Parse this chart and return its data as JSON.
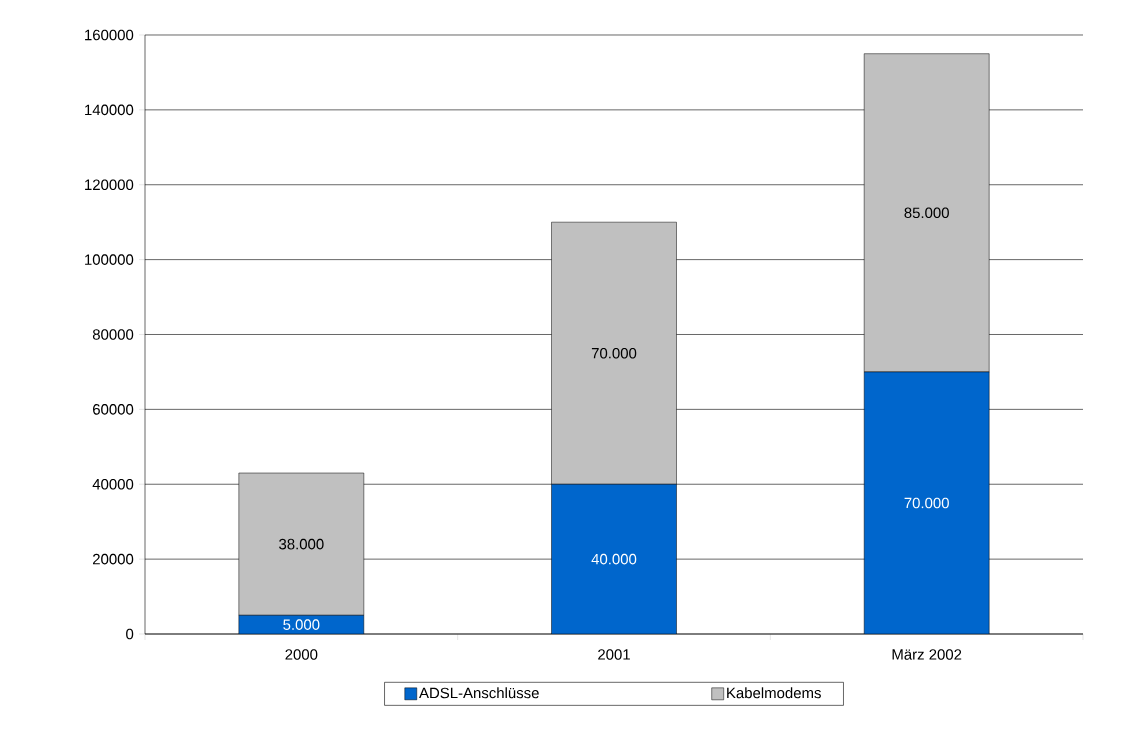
{
  "chart_data": {
    "type": "bar",
    "stacked": true,
    "categories": [
      "2000",
      "2001",
      "März 2002"
    ],
    "series": [
      {
        "name": "ADSL-Anschlüsse",
        "color": "#0066cc",
        "values": [
          5000,
          40000,
          70000
        ],
        "value_labels": [
          "5.000",
          "40.000",
          "70.000"
        ]
      },
      {
        "name": "Kabelmodems",
        "color": "#c0c0c0",
        "values": [
          38000,
          70000,
          85000
        ],
        "value_labels": [
          "38.000",
          "70.000",
          "85.000"
        ]
      }
    ],
    "ylim": [
      0,
      160000
    ],
    "yticks": [
      0,
      20000,
      40000,
      60000,
      80000,
      100000,
      120000,
      140000,
      160000
    ],
    "grid": "y",
    "legend": "bottom"
  }
}
